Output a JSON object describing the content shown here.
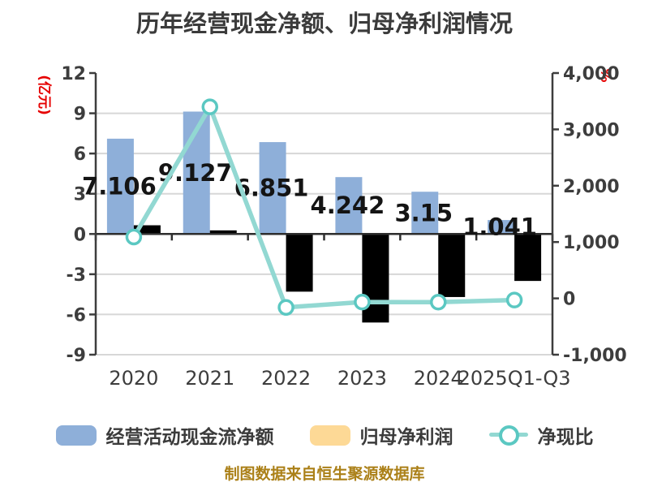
{
  "title": "历年经营现金净额、归母净利润情况",
  "caption": "制图数据来自恒生聚源数据库",
  "legend": {
    "items": [
      {
        "label": "经营活动现金流净额",
        "type": "bar",
        "color": "#8eafd9"
      },
      {
        "label": "归母净利润",
        "type": "bar",
        "color": "#fdd996"
      },
      {
        "label": "净现比",
        "type": "line",
        "color": "#92d8d2"
      }
    ]
  },
  "chart_data": {
    "type": "bar",
    "subtype": "bar-line-combo",
    "categories": [
      "2020",
      "2021",
      "2022",
      "2023",
      "2024",
      "2025Q1-Q3"
    ],
    "series": [
      {
        "name": "经营活动现金流净额",
        "chart": "bar",
        "axis": "left",
        "unit": "亿元",
        "color": "#8eafd9",
        "values": [
          7.106,
          9.127,
          6.851,
          4.242,
          3.15,
          1.041
        ],
        "value_labels": [
          "7.106",
          "9.127",
          "6.851",
          "4.242",
          "3.15",
          "1.041"
        ]
      },
      {
        "name": "归母净利润",
        "chart": "bar",
        "axis": "left",
        "unit": "亿元",
        "estimated": true,
        "values": [
          0.65,
          0.27,
          -4.3,
          -6.6,
          -4.7,
          -3.5
        ]
      },
      {
        "name": "净现比",
        "chart": "line",
        "axis": "right",
        "unit": "%",
        "estimated": true,
        "values": [
          1090,
          3400,
          -160,
          -65,
          -67,
          -30
        ]
      }
    ],
    "left_axis": {
      "label": "(亿元)",
      "min": -9,
      "max": 12,
      "tick_step": 3,
      "ticks": [
        12,
        9,
        6,
        3,
        0,
        -3,
        -6,
        -9
      ]
    },
    "right_axis": {
      "label": "%",
      "min": -1000,
      "max": 4000,
      "tick_step": 1000,
      "ticks": [
        4000,
        3000,
        2000,
        1000,
        0,
        -1000
      ],
      "tick_labels": [
        "4,000",
        "3,000",
        "2,000",
        "1,000",
        "0",
        "-1,000"
      ]
    },
    "grid": true,
    "legend_position": "bottom"
  },
  "colors": {
    "bar_cash": "#8eafd9",
    "bar_profit": "#fdd996",
    "line": "#92d8d2",
    "line_marker_ring": "#5bc8c2",
    "marker_fill": "#ffffff",
    "axis_unit": "#e60000",
    "caption": "#ab8018",
    "title_text": "#3b3b3b",
    "tick_text": "#3d3d3d",
    "data_label": "#141414",
    "grid_line": "#d7d7d7",
    "zero_line": "#2e2e2e",
    "axis_line": "#3d3d3d"
  }
}
